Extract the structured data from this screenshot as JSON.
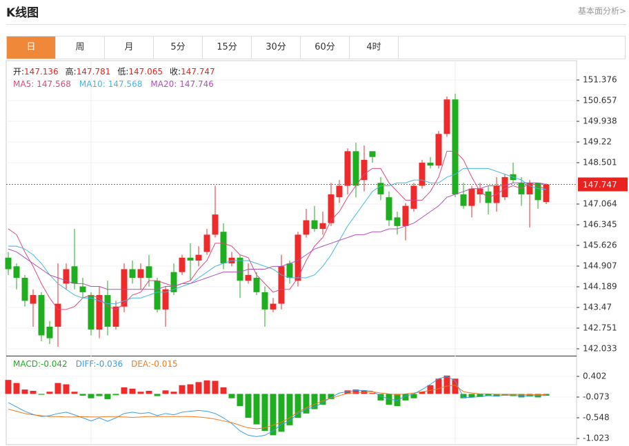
{
  "header": {
    "title": "K线图",
    "link": "基本面分析>"
  },
  "tabs": [
    "日",
    "周",
    "月",
    "5分",
    "15分",
    "30分",
    "60分",
    "4时"
  ],
  "info": [
    {
      "label": "开:",
      "value": 147.136
    },
    {
      "label": "高:",
      "value": 147.781
    },
    {
      "label": "低:",
      "value": 147.065
    },
    {
      "label": "收:",
      "value": 147.747
    }
  ],
  "chart_data": [
    {
      "type": "candlestick",
      "up_color": "#ee2b2b",
      "down_color": "#1fae1f",
      "open": [
        145.2,
        144.9,
        144.5,
        143.6,
        143.9,
        142.8,
        142.8,
        144.3,
        144.9,
        144.2,
        143.9,
        142.7,
        143.9,
        142.8,
        143.5,
        144.8,
        144.5,
        144.9,
        144.4,
        143.4,
        144.7,
        144.7,
        145.2,
        145.1,
        145.4,
        146.0,
        146.1,
        145.0,
        145.2,
        144.4,
        144.5,
        144.0,
        143.4,
        143.6,
        145.0,
        144.4,
        146.0,
        146.5,
        146.2,
        146.4,
        147.3,
        147.7,
        148.9,
        147.9,
        148.9,
        147.8,
        147.3,
        146.6,
        146.3,
        146.9,
        147.7,
        148.5,
        148.4,
        149.5,
        150.7,
        147.4,
        147.0,
        147.4,
        147.5,
        147.1,
        147.3,
        148.1,
        147.8,
        147.4,
        147.8,
        147.136
      ],
      "high": [
        145.4,
        145.0,
        144.6,
        144.1,
        144.0,
        143.0,
        145.0,
        145.0,
        146.2,
        144.5,
        144.0,
        144.2,
        144.4,
        143.7,
        145.0,
        145.1,
        145.0,
        145.3,
        144.5,
        144.2,
        145.0,
        145.3,
        145.7,
        145.6,
        146.2,
        147.7,
        146.4,
        145.4,
        145.3,
        145.0,
        144.7,
        144.2,
        143.8,
        145.3,
        145.1,
        146.1,
        146.9,
        147.0,
        146.8,
        147.8,
        147.9,
        149.0,
        149.2,
        149.1,
        148.9,
        148.0,
        147.5,
        146.8,
        147.1,
        147.8,
        148.6,
        148.7,
        149.6,
        150.8,
        150.9,
        147.8,
        147.7,
        147.8,
        147.7,
        148.0,
        148.1,
        148.5,
        148.0,
        147.9,
        147.8,
        147.781
      ],
      "low": [
        144.6,
        144.1,
        143.5,
        142.8,
        142.3,
        142.2,
        142.1,
        144.1,
        144.1,
        143.8,
        142.5,
        142.4,
        142.5,
        142.7,
        143.3,
        144.3,
        144.1,
        144.2,
        143.3,
        142.8,
        143.9,
        144.6,
        144.4,
        144.9,
        145.3,
        145.9,
        144.8,
        144.9,
        143.8,
        144.3,
        143.9,
        142.8,
        143.3,
        143.4,
        144.3,
        144.2,
        145.9,
        146.1,
        146.0,
        146.3,
        147.1,
        147.4,
        147.3,
        147.5,
        148.5,
        147.2,
        146.3,
        146.0,
        145.8,
        146.8,
        147.6,
        148.3,
        148.3,
        149.4,
        147.3,
        146.9,
        146.6,
        147.1,
        146.7,
        146.8,
        147.2,
        147.8,
        147.0,
        146.25,
        146.9,
        147.065
      ],
      "close": [
        144.8,
        144.5,
        143.7,
        143.9,
        142.5,
        142.4,
        143.6,
        144.8,
        144.3,
        144.0,
        142.7,
        143.9,
        142.8,
        143.5,
        144.8,
        144.5,
        144.8,
        144.5,
        143.4,
        144.1,
        144.0,
        145.2,
        145.1,
        145.3,
        146.0,
        146.7,
        145.0,
        145.2,
        144.4,
        144.6,
        144.0,
        143.4,
        143.6,
        144.9,
        144.5,
        146.0,
        146.5,
        146.2,
        146.4,
        147.4,
        147.7,
        148.9,
        147.7,
        148.6,
        148.7,
        147.4,
        146.5,
        146.3,
        147.0,
        147.7,
        148.5,
        148.4,
        149.5,
        150.7,
        147.4,
        147.0,
        147.6,
        147.6,
        147.1,
        147.7,
        148.0,
        147.9,
        147.4,
        147.8,
        147.2,
        147.747
      ],
      "series": [
        {
          "name": "MA5:",
          "color": "#e0487e",
          "values": [
            146.2,
            146.0,
            145.4,
            144.9,
            144.3,
            143.8,
            143.4,
            143.4,
            143.5,
            143.8,
            143.9,
            143.8,
            143.5,
            143.4,
            143.6,
            143.9,
            144.0,
            144.4,
            144.4,
            144.3,
            144.2,
            144.3,
            144.4,
            144.8,
            145.1,
            145.7,
            145.7,
            145.6,
            145.3,
            145.2,
            144.6,
            144.3,
            144.0,
            144.1,
            144.1,
            144.5,
            145.1,
            145.6,
            145.9,
            146.5,
            146.8,
            147.3,
            147.7,
            148.1,
            148.3,
            148.3,
            147.8,
            147.5,
            147.2,
            147.2,
            147.2,
            147.5,
            148.0,
            148.9,
            148.9,
            148.6,
            148.0,
            147.5,
            147.3,
            147.4,
            147.6,
            147.7,
            147.6,
            147.8,
            147.7,
            147.568
          ]
        },
        {
          "name": "MA10:",
          "color": "#44b6e0",
          "values": [
            145.6,
            145.6,
            145.5,
            145.3,
            145.0,
            144.6,
            144.3,
            144.1,
            143.9,
            143.8,
            143.8,
            143.7,
            143.6,
            143.6,
            143.7,
            143.8,
            143.8,
            143.9,
            144.0,
            144.0,
            144.1,
            144.2,
            144.3,
            144.5,
            144.7,
            144.9,
            145.0,
            145.1,
            145.1,
            145.1,
            145.0,
            144.9,
            144.8,
            144.6,
            144.5,
            144.5,
            144.5,
            144.6,
            144.9,
            145.3,
            145.8,
            146.3,
            146.7,
            147.1,
            147.5,
            147.7,
            147.7,
            147.8,
            147.8,
            147.9,
            147.9,
            147.8,
            147.8,
            148.0,
            148.1,
            148.3,
            148.3,
            148.3,
            148.3,
            148.2,
            148.1,
            148.0,
            147.9,
            147.7,
            147.6,
            147.568
          ]
        },
        {
          "name": "MA20:",
          "color": "#b04fc0",
          "values": [
            145.5,
            145.4,
            145.2,
            145.0,
            144.8,
            144.6,
            144.5,
            144.4,
            144.3,
            144.3,
            144.2,
            144.2,
            144.1,
            144.1,
            144.1,
            144.1,
            144.1,
            144.1,
            144.1,
            144.2,
            144.2,
            144.3,
            144.3,
            144.4,
            144.5,
            144.6,
            144.7,
            144.7,
            144.7,
            144.8,
            144.8,
            144.8,
            144.9,
            144.9,
            145.0,
            145.1,
            145.3,
            145.5,
            145.6,
            145.7,
            145.8,
            145.9,
            146.0,
            146.0,
            146.1,
            146.1,
            146.2,
            146.2,
            146.3,
            146.4,
            146.6,
            146.8,
            147.0,
            147.3,
            147.4,
            147.5,
            147.6,
            147.6,
            147.7,
            147.7,
            147.7,
            147.8,
            147.8,
            147.8,
            147.8,
            147.746
          ]
        }
      ],
      "last_price": 147.747,
      "ylim": [
        141.793,
        152.047
      ],
      "yticks": [
        151.376,
        150.657,
        149.938,
        149.22,
        148.501,
        147.064,
        146.345,
        145.626,
        144.907,
        144.189,
        143.47,
        142.751,
        142.033
      ],
      "grid": true
    },
    {
      "type": "macd",
      "up_color": "#ee2b2b",
      "down_color": "#1fae1f",
      "hist": {
        "name": "MACD:",
        "color": "#1fae1f",
        "values": [
          0.32,
          0.25,
          0.1,
          0.07,
          -0.02,
          0.05,
          0.25,
          0.22,
          0.05,
          -0.04,
          -0.1,
          -0.05,
          -0.12,
          -0.03,
          0.15,
          0.12,
          0.05,
          0.07,
          -0.05,
          0.08,
          0.05,
          0.2,
          0.22,
          0.27,
          0.31,
          0.3,
          0.15,
          -0.1,
          -0.28,
          -0.55,
          -0.7,
          -0.85,
          -0.95,
          -0.87,
          -0.72,
          -0.55,
          -0.45,
          -0.35,
          -0.25,
          -0.12,
          0.0,
          0.08,
          0.1,
          0.08,
          0.02,
          -0.15,
          -0.25,
          -0.28,
          -0.15,
          -0.1,
          0.05,
          0.2,
          0.35,
          0.42,
          0.35,
          -0.1,
          -0.08,
          -0.07,
          -0.05,
          -0.06,
          -0.04,
          -0.05,
          -0.08,
          -0.06,
          -0.08,
          -0.042
        ]
      },
      "series": [
        {
          "name": "DIFF:",
          "color": "#3a9ce8",
          "values": [
            -0.2,
            -0.3,
            -0.4,
            -0.47,
            -0.52,
            -0.5,
            -0.45,
            -0.42,
            -0.48,
            -0.55,
            -0.62,
            -0.55,
            -0.63,
            -0.55,
            -0.45,
            -0.42,
            -0.45,
            -0.43,
            -0.5,
            -0.45,
            -0.48,
            -0.42,
            -0.4,
            -0.38,
            -0.4,
            -0.45,
            -0.55,
            -0.68,
            -0.85,
            -0.95,
            -0.98,
            -0.95,
            -0.85,
            -0.7,
            -0.62,
            -0.45,
            -0.35,
            -0.3,
            -0.2,
            -0.08,
            0.02,
            0.05,
            0.08,
            0.08,
            0.06,
            -0.05,
            -0.12,
            -0.15,
            -0.05,
            0.0,
            0.1,
            0.22,
            0.35,
            0.4,
            0.3,
            -0.08,
            -0.08,
            -0.06,
            -0.04,
            -0.05,
            -0.03,
            -0.03,
            -0.05,
            -0.04,
            -0.04,
            -0.036
          ]
        },
        {
          "name": "DEA:",
          "color": "#f07b1c",
          "values": [
            -0.35,
            -0.4,
            -0.45,
            -0.48,
            -0.5,
            -0.52,
            -0.52,
            -0.53,
            -0.53,
            -0.52,
            -0.53,
            -0.53,
            -0.52,
            -0.52,
            -0.53,
            -0.54,
            -0.53,
            -0.52,
            -0.52,
            -0.52,
            -0.52,
            -0.52,
            -0.52,
            -0.53,
            -0.55,
            -0.58,
            -0.62,
            -0.66,
            -0.72,
            -0.78,
            -0.8,
            -0.78,
            -0.72,
            -0.65,
            -0.55,
            -0.42,
            -0.32,
            -0.24,
            -0.16,
            -0.1,
            -0.04,
            0.01,
            0.03,
            0.04,
            0.05,
            0.02,
            0.0,
            -0.02,
            0.0,
            0.02,
            0.05,
            0.08,
            0.12,
            0.18,
            0.2,
            0.05,
            0.02,
            0.0,
            0.0,
            -0.01,
            -0.01,
            -0.01,
            -0.01,
            -0.02,
            -0.02,
            -0.015
          ]
        }
      ],
      "ylim": [
        -1.165,
        0.861
      ],
      "yticks": [
        0.402,
        -0.073,
        -0.548,
        -1.023
      ]
    }
  ]
}
